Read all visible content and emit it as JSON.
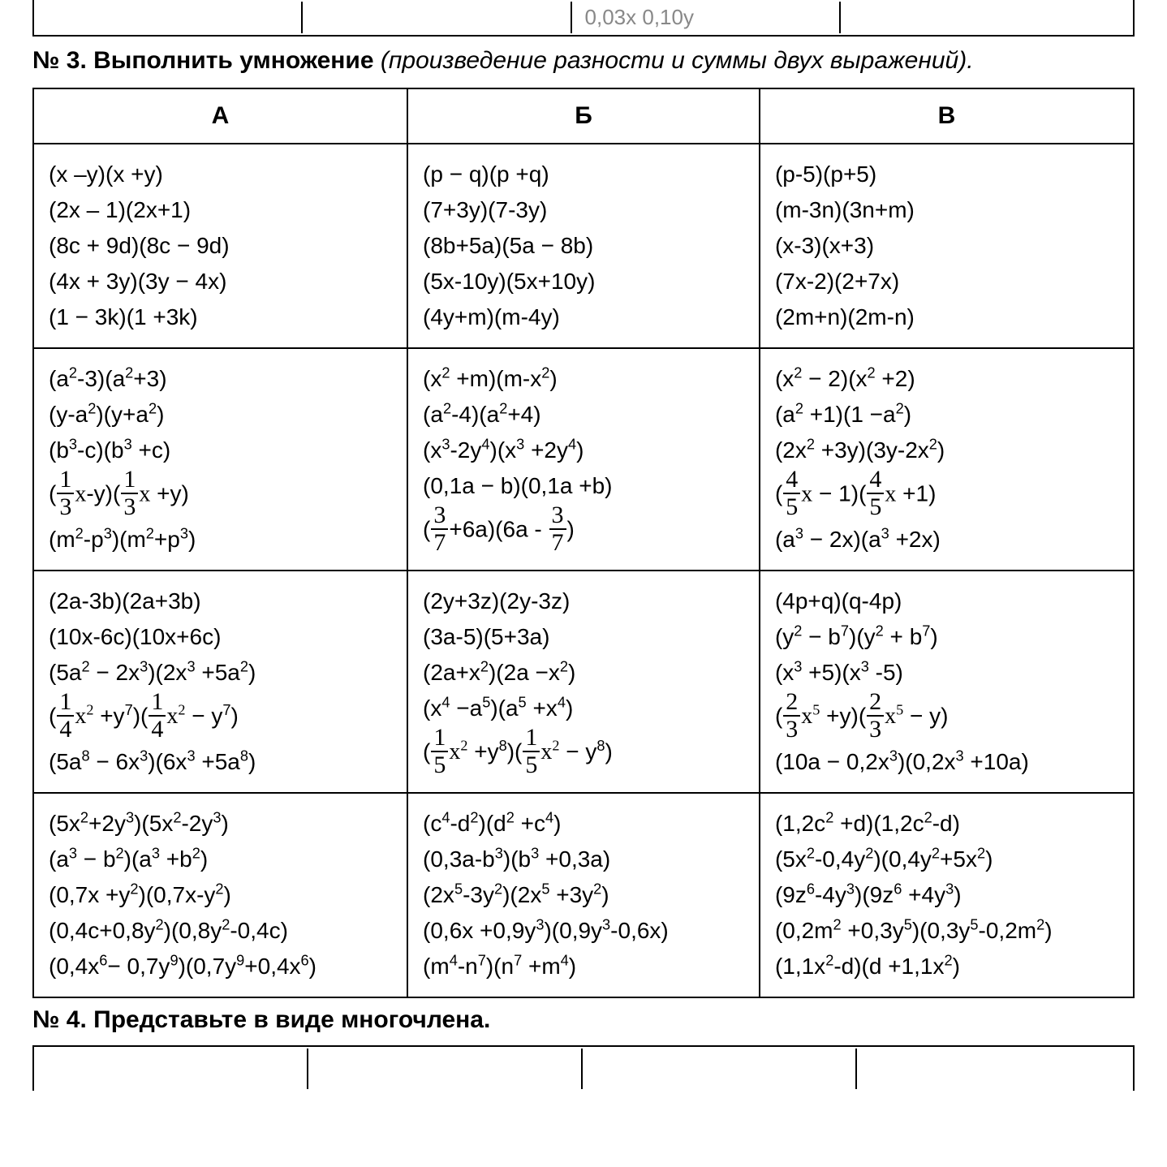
{
  "top_partial_row": {
    "c1": "",
    "c2": "",
    "c3_frag": "0,03x    0,10y",
    "c4": ""
  },
  "heading3": {
    "num": "№ 3.",
    "title": "Выполнить умножение",
    "sub": "(произведение разности и суммы двух выражений)."
  },
  "table3": {
    "headers": [
      "А",
      "Б",
      "В"
    ],
    "rows": [
      {
        "A": [
          "(x –y)(x +y)",
          "(2x – 1)(2x+1)",
          "(8c + 9d)(8c − 9d)",
          "(4x + 3y)(3y − 4x)",
          "(1 − 3k)(1 +3k)"
        ],
        "B": [
          "(p − q)(p +q)",
          "(7+3y)(7-3y)",
          "(8b+5a)(5a − 8b)",
          "(5x-10y)(5x+10y)",
          "(4y+m)(m-4y)"
        ],
        "V": [
          "(p-5)(p+5)",
          "(m-3n)(3n+m)",
          "(x-3)(x+3)",
          "(7x-2)(2+7x)",
          "(2m+n)(2m-n)"
        ]
      },
      {
        "A": [
          "(a<sup>2</sup>-3)(a<sup>2</sup>+3)",
          "(y-a<sup>2</sup>)(y+a<sup>2</sup>)",
          "(b<sup>3</sup>-c)(b<sup>3</sup> +c)",
          "(FRAC13<span class='serif'>x</span>-y)(FRAC13<span class='serif'>x</span> +y)",
          "(m<sup>2</sup>-p<sup>3</sup>)(m<sup>2</sup>+p<sup>3</sup>)"
        ],
        "B": [
          "(x<sup>2</sup> +m)(m-x<sup>2</sup>)",
          "(a<sup>2</sup>-4)(a<sup>2</sup>+4)",
          "(x<sup>3</sup>-2y<sup>4</sup>)(x<sup>3</sup> +2y<sup>4</sup>)",
          "(0,1a − b)(0,1a +b)",
          "(FRAC37+6a)(6a - FRAC37)"
        ],
        "V": [
          "(x<sup>2</sup> − 2)(x<sup>2</sup> +2)",
          "(a<sup>2</sup> +1)(1 −a<sup>2</sup>)",
          "(2x<sup>2</sup> +3y)(3y-2x<sup>2</sup>)",
          "(FRAC45<span class='serif'>x</span> − 1)(FRAC45<span class='serif'>x</span> +1)",
          "(a<sup>3</sup> − 2x)(a<sup>3</sup> +2x)"
        ]
      },
      {
        "A": [
          "(2a-3b)(2a+3b)",
          "(10x-6c)(10x+6c)",
          "(5a<sup>2</sup> − 2x<sup>3</sup>)(2x<sup>3</sup> +5a<sup>2</sup>)",
          "(FRAC14<span class='serif'>x<sup>2</sup></span> +y<sup>7</sup>)(FRAC14<span class='serif'>x<sup>2</sup></span> − y<sup>7</sup>)",
          "(5a<sup>8</sup> − 6x<sup>3</sup>)(6x<sup>3</sup> +5a<sup>8</sup>)"
        ],
        "B": [
          "(2y+3z)(2y-3z)",
          "(3a-5)(5+3a)",
          "(2a+x<sup>2</sup>)(2a −x<sup>2</sup>)",
          "(x<sup>4</sup> −a<sup>5</sup>)(a<sup>5</sup> +x<sup>4</sup>)",
          "(FRAC15<span class='serif'>x<sup>2</sup></span> +y<sup>8</sup>)(FRAC15<span class='serif'>x<sup>2</sup></span> − y<sup>8</sup>)"
        ],
        "V": [
          "(4p+q)(q-4p)",
          "(y<sup>2</sup> − b<sup>7</sup>)(y<sup>2</sup> + b<sup>7</sup>)",
          "(x<sup>3</sup> +5)(x<sup>3</sup> -5)",
          "(FRAC23<span class='serif'>x<sup>5</sup></span> +y)(FRAC23<span class='serif'>x<sup>5</sup></span> − y)",
          "(10a − 0,2x<sup>3</sup>)(0,2x<sup>3</sup> +10a)"
        ]
      },
      {
        "A": [
          "(5x<sup>2</sup>+2y<sup>3</sup>)(5x<sup>2</sup>-2y<sup>3</sup>)",
          "(a<sup>3</sup> − b<sup>2</sup>)(a<sup>3</sup> +b<sup>2</sup>)",
          "(0,7x +y<sup>2</sup>)(0,7x-y<sup>2</sup>)",
          "(0,4c+0,8y<sup>2</sup>)(0,8y<sup>2</sup>-0,4c)",
          "(0,4x<sup>6</sup>− 0,7y<sup>9</sup>)(0,7y<sup>9</sup>+0,4x<sup>6</sup>)"
        ],
        "B": [
          "(c<sup>4</sup>-d<sup>2</sup>)(d<sup>2</sup> +c<sup>4</sup>)",
          "(0,3a-b<sup>3</sup>)(b<sup>3</sup> +0,3a)",
          "(2x<sup>5</sup>-3y<sup>2</sup>)(2x<sup>5</sup> +3y<sup>2</sup>)",
          "(0,6x +0,9y<sup>3</sup>)(0,9y<sup>3</sup>-0,6x)",
          "(m<sup>4</sup>-n<sup>7</sup>)(n<sup>7</sup> +m<sup>4</sup>)"
        ],
        "V": [
          "(1,2c<sup>2</sup> +d)(1,2c<sup>2</sup>-d)",
          "(5x<sup>2</sup>-0,4y<sup>2</sup>)(0,4y<sup>2</sup>+5x<sup>2</sup>)",
          "(9z<sup>6</sup>-4y<sup>3</sup>)(9z<sup>6</sup> +4y<sup>3</sup>)",
          "(0,2m<sup>2</sup> +0,3y<sup>5</sup>)(0,3y<sup>5</sup>-0,2m<sup>2</sup>)",
          "(1,1x<sup>2</sup>-d)(d +1,1x<sup>2</sup>)"
        ]
      }
    ]
  },
  "heading4": {
    "text": "№ 4. Представьте в виде многочлена."
  },
  "fractions": {
    "FRAC13": {
      "n": "1",
      "d": "3"
    },
    "FRAC37": {
      "n": "3",
      "d": "7"
    },
    "FRAC45": {
      "n": "4",
      "d": "5"
    },
    "FRAC14": {
      "n": "1",
      "d": "4"
    },
    "FRAC15": {
      "n": "1",
      "d": "5"
    },
    "FRAC23": {
      "n": "2",
      "d": "3"
    }
  }
}
